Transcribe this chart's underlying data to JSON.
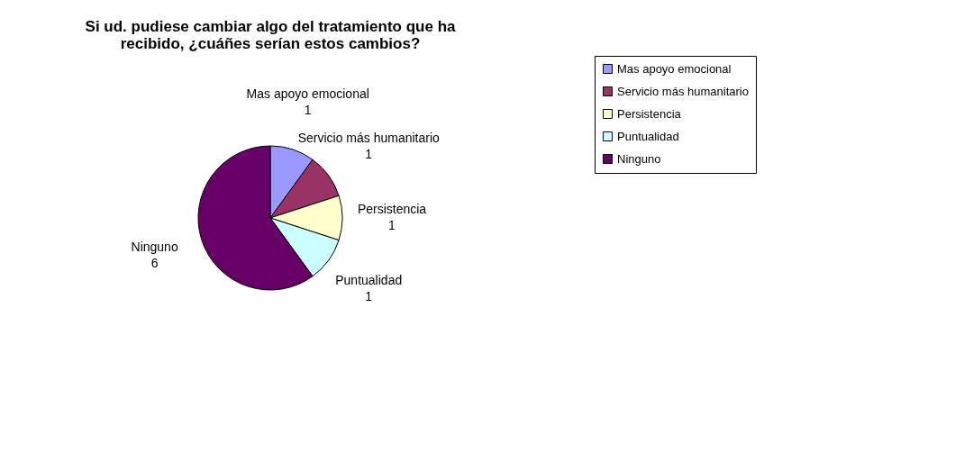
{
  "chart_data": {
    "type": "pie",
    "title": "Si ud. pudiese cambiar algo del tratamiento que ha recibido, ¿cuáñes serían estos cambios?",
    "categories": [
      "Mas apoyo emocional",
      "Servicio más humanitario",
      "Persistencia",
      "Puntualidad",
      "Ninguno"
    ],
    "values": [
      1,
      1,
      1,
      1,
      6
    ],
    "colors": [
      "#9999ff",
      "#993366",
      "#ffffcc",
      "#ccffff",
      "#660066"
    ],
    "data_labels": true,
    "legend": "right"
  }
}
